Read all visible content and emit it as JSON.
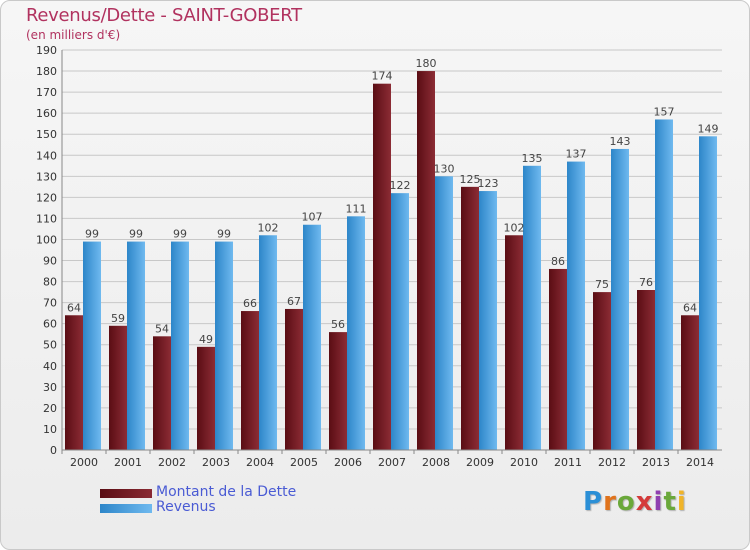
{
  "header": {
    "title": "Revenus/Dette - SAINT-GOBERT",
    "subtitle": "(en milliers d'€)"
  },
  "legend": {
    "debt_label": "Montant de la Dette",
    "revenue_label": "Revenus"
  },
  "logo": {
    "text": "Proxiti"
  },
  "colors": {
    "debt": "#7a1c24",
    "revenue": "#4aa3e6",
    "grid": "#c8c8c8",
    "title": "#b1325f",
    "legend_text": "#4a5bd4"
  },
  "chart_data": {
    "type": "bar",
    "title": "Revenus/Dette - SAINT-GOBERT",
    "subtitle": "(en milliers d'€)",
    "categories": [
      "2000",
      "2001",
      "2002",
      "2003",
      "2004",
      "2005",
      "2006",
      "2007",
      "2008",
      "2009",
      "2010",
      "2011",
      "2012",
      "2013",
      "2014"
    ],
    "series": [
      {
        "name": "Montant de la Dette",
        "values": [
          64,
          59,
          54,
          49,
          66,
          67,
          56,
          174,
          180,
          125,
          102,
          86,
          75,
          76,
          64
        ]
      },
      {
        "name": "Revenus",
        "values": [
          99,
          99,
          99,
          99,
          102,
          107,
          111,
          122,
          130,
          123,
          135,
          137,
          143,
          157,
          149
        ]
      }
    ],
    "ylim": [
      0,
      190
    ],
    "ytick_step": 10,
    "grid": true,
    "legend_position": "bottom-left"
  }
}
